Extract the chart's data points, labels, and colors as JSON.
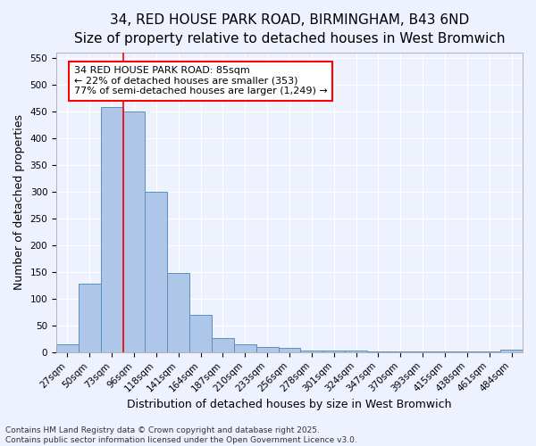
{
  "title_line1": "34, RED HOUSE PARK ROAD, BIRMINGHAM, B43 6ND",
  "title_line2": "Size of property relative to detached houses in West Bromwich",
  "xlabel": "Distribution of detached houses by size in West Bromwich",
  "ylabel": "Number of detached properties",
  "categories": [
    "27sqm",
    "50sqm",
    "73sqm",
    "96sqm",
    "118sqm",
    "141sqm",
    "164sqm",
    "187sqm",
    "210sqm",
    "233sqm",
    "256sqm",
    "278sqm",
    "301sqm",
    "324sqm",
    "347sqm",
    "370sqm",
    "393sqm",
    "415sqm",
    "438sqm",
    "461sqm",
    "484sqm"
  ],
  "values": [
    15,
    128,
    458,
    450,
    300,
    148,
    70,
    27,
    15,
    10,
    8,
    3,
    3,
    3,
    1,
    1,
    1,
    1,
    1,
    1,
    5
  ],
  "bar_color": "#aec6e8",
  "bar_edge_color": "#5a8fc0",
  "vline_x_index": 2.5,
  "vline_color": "red",
  "annotation_text": "34 RED HOUSE PARK ROAD: 85sqm\n← 22% of detached houses are smaller (353)\n77% of semi-detached houses are larger (1,249) →",
  "annotation_box_color": "white",
  "annotation_box_edge_color": "red",
  "ylim": [
    0,
    560
  ],
  "yticks": [
    0,
    50,
    100,
    150,
    200,
    250,
    300,
    350,
    400,
    450,
    500,
    550
  ],
  "footer_text": "Contains HM Land Registry data © Crown copyright and database right 2025.\nContains public sector information licensed under the Open Government Licence v3.0.",
  "bg_color": "#eef2ff",
  "grid_color": "white",
  "title_fontsize": 11,
  "subtitle_fontsize": 10,
  "axis_label_fontsize": 9,
  "tick_fontsize": 7.5,
  "annotation_fontsize": 8,
  "footer_fontsize": 6.5
}
